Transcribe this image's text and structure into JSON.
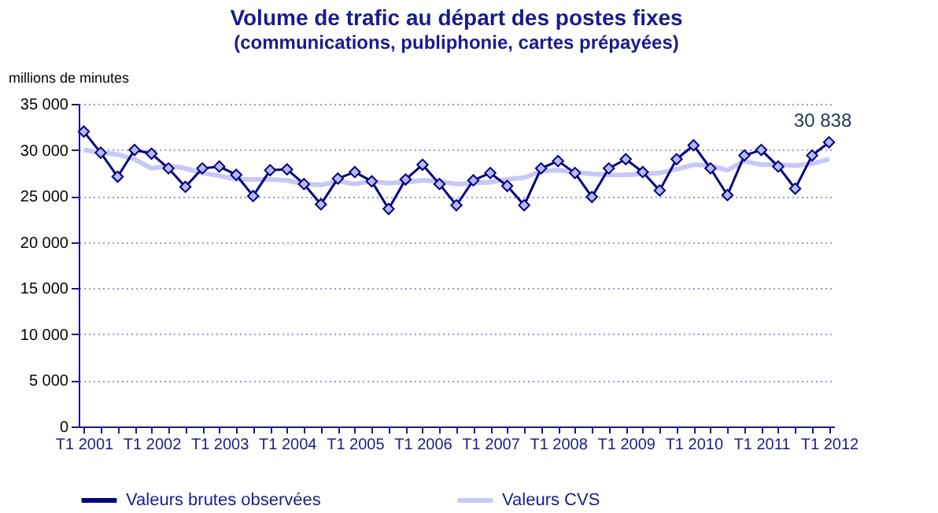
{
  "chart_data": {
    "type": "line",
    "title": "Volume de trafic au départ des postes fixes",
    "subtitle": "(communications, publiphonie, cartes prépayées)",
    "ylabel": "millions de minutes",
    "categories": [
      "T1 2001",
      null,
      null,
      null,
      "T1 2002",
      null,
      null,
      null,
      "T1 2003",
      null,
      null,
      null,
      "T1 2004",
      null,
      null,
      null,
      "T1 2005",
      null,
      null,
      null,
      "T1 2006",
      null,
      null,
      null,
      "T1 2007",
      null,
      null,
      null,
      "T1 2008",
      null,
      null,
      null,
      "T1 2009",
      null,
      null,
      null,
      "T1 2010",
      null,
      null,
      null,
      "T1 2011",
      null,
      null,
      null,
      "T1 2012"
    ],
    "ylim": [
      0,
      35000
    ],
    "yticks": [
      0,
      {
        "value": 5000,
        "label": "5 000"
      },
      {
        "value": 10000,
        "label": "10 000"
      },
      {
        "value": 15000,
        "label": "15 000"
      },
      {
        "value": 20000,
        "label": "20 000"
      },
      {
        "value": 25000,
        "label": "25 000"
      },
      {
        "value": 30000,
        "label": "30 000"
      },
      {
        "value": 35000,
        "label": "35 000"
      }
    ],
    "grid": "y",
    "legend": "bottom",
    "series": [
      {
        "name": "Valeurs brutes observées",
        "color": "#000080",
        "marker": "diamond",
        "values": [
          32000,
          29700,
          27100,
          30000,
          29600,
          28000,
          26000,
          28000,
          28200,
          27300,
          25000,
          27800,
          27900,
          26300,
          24100,
          26900,
          27600,
          26600,
          23600,
          26800,
          28400,
          26300,
          24000,
          26700,
          27500,
          26100,
          24000,
          28000,
          28800,
          27500,
          24900,
          28000,
          29000,
          27600,
          25600,
          29000,
          30500,
          28000,
          25100,
          29400,
          30000,
          28200,
          25800,
          29400,
          30838
        ],
        "value_labels": [
          null,
          null,
          null,
          null,
          null,
          null,
          null,
          null,
          null,
          null,
          null,
          null,
          null,
          null,
          null,
          null,
          null,
          null,
          null,
          null,
          null,
          null,
          null,
          null,
          null,
          null,
          null,
          null,
          null,
          null,
          null,
          null,
          null,
          null,
          null,
          null,
          null,
          null,
          null,
          null,
          null,
          null,
          null,
          null,
          "30 838"
        ]
      },
      {
        "name": "Valeurs CVS",
        "color": "#c8c8f8",
        "marker": "none",
        "values": [
          30000,
          29700,
          29500,
          29000,
          28000,
          28300,
          28000,
          27500,
          27200,
          26800,
          26800,
          26800,
          26700,
          26300,
          26200,
          26600,
          26300,
          26600,
          26400,
          26500,
          26700,
          26600,
          26300,
          26400,
          26500,
          26800,
          27000,
          27700,
          27800,
          27600,
          27400,
          27300,
          27300,
          27400,
          27500,
          27900,
          28400,
          28300,
          27800,
          28800,
          28400,
          28400,
          28300,
          28500,
          29000
        ]
      }
    ]
  }
}
